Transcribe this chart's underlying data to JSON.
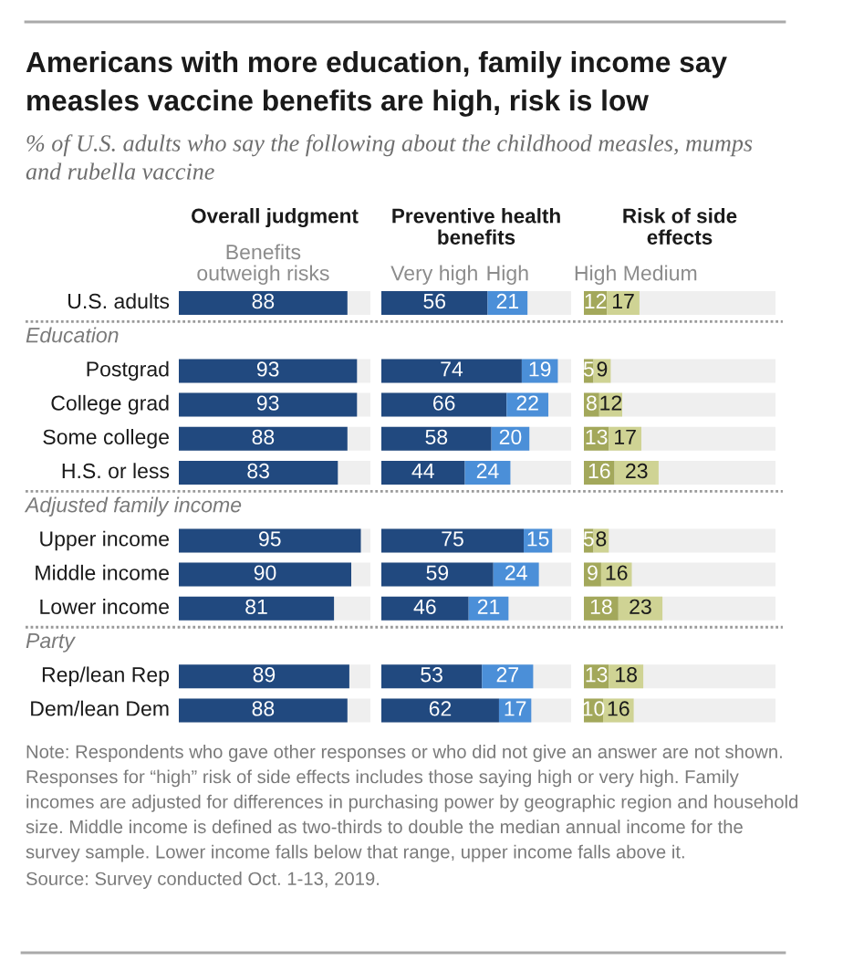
{
  "chart_data": [
    {
      "type": "other",
      "title": "Americans with more education, family income say measles vaccine benefits are high, risk is low",
      "subtitle": "% of U.S. adults who say the following about the childhood measles, mumps and rubella vaccine",
      "annotations": [
        "Note: Respondents who gave other responses or who did not give an answer are not shown. Responses for “high” risk of side effects includes those saying high or very high. Family incomes are adjusted for differences in purchasing power by geographic region and household size. Middle income is defined as two-thirds to double the median annual income for the survey sample. Lower income falls below that range, upper income falls above it.",
        "Source: Survey conducted Oct. 1-13, 2019."
      ]
    },
    {
      "type": "bar",
      "orientation": "horizontal",
      "title": "Overall judgment",
      "categories": [
        "U.S. adults",
        null,
        "Postgrad",
        "College grad",
        "Some college",
        "H.S. or less",
        null,
        "Upper income",
        "Middle income",
        "Lower income",
        null,
        "Rep/lean Rep",
        "Dem/lean Dem"
      ],
      "annotations": [
        "Education",
        "Adjusted family income",
        "Party"
      ],
      "series": [
        {
          "name": "Benefits outweigh risks",
          "color": "#21497f",
          "values": [
            88,
            null,
            93,
            93,
            88,
            83,
            null,
            95,
            90,
            81,
            null,
            89,
            88
          ]
        }
      ],
      "xlim": [
        0,
        100
      ],
      "data_labels": true,
      "tick_labels": "y"
    },
    {
      "type": "bar",
      "orientation": "horizontal",
      "stacked": true,
      "title": "Preventive health benefits",
      "series": [
        {
          "name": "Very high",
          "color": "#21497f",
          "values": [
            56,
            null,
            74,
            66,
            58,
            44,
            null,
            75,
            59,
            46,
            null,
            53,
            62
          ]
        },
        {
          "name": "High",
          "color": "#4b8fd8",
          "values": [
            21,
            null,
            19,
            22,
            20,
            24,
            null,
            15,
            24,
            21,
            null,
            27,
            17
          ]
        }
      ],
      "xlim": [
        0,
        100
      ],
      "data_labels": true
    },
    {
      "type": "bar",
      "orientation": "horizontal",
      "stacked": true,
      "title": "Risk of side effects",
      "series": [
        {
          "name": "High",
          "color": "#a3a85b",
          "values": [
            12,
            null,
            5,
            8,
            13,
            16,
            null,
            5,
            9,
            18,
            null,
            13,
            10
          ]
        },
        {
          "name": "Medium",
          "color": "#cfd394",
          "values": [
            17,
            null,
            9,
            12,
            17,
            23,
            null,
            8,
            16,
            23,
            null,
            18,
            16
          ]
        }
      ],
      "xlim": [
        0,
        100
      ],
      "data_labels": true
    }
  ]
}
